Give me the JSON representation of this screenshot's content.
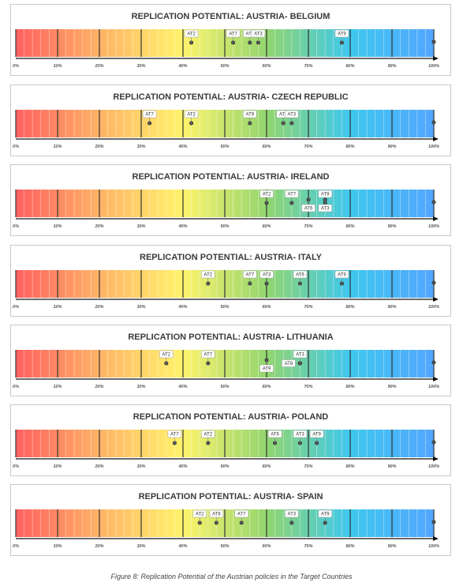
{
  "caption": "Figure 8: Replication Potential of the Austrian policies in the Target Countries",
  "scale": {
    "min": 0,
    "max": 100,
    "tick_labels": [
      "0%",
      "10%",
      "20%",
      "30%",
      "40%",
      "50%",
      "60%",
      "70%",
      "80%",
      "90%",
      "100%"
    ],
    "gradient_colors": [
      "#ff5f5f",
      "#ffb366",
      "#fff36b",
      "#92d66f",
      "#3ec8ee",
      "#53a6ff"
    ]
  },
  "chart_data": [
    {
      "type": "scatter",
      "title": "REPLICATION POTENTIAL: AUSTRIA- BELGIUM",
      "xlim": [
        0,
        100
      ],
      "points": [
        {
          "label": "AT2",
          "x": 42,
          "label_pos": "above"
        },
        {
          "label": "AT7",
          "x": 52,
          "label_pos": "above"
        },
        {
          "label": "AT6",
          "x": 56,
          "label_pos": "above"
        },
        {
          "label": "AT3",
          "x": 58,
          "label_pos": "above"
        },
        {
          "label": "AT9",
          "x": 78,
          "label_pos": "above"
        },
        {
          "label": "",
          "x": 100,
          "label_pos": "none"
        }
      ]
    },
    {
      "type": "scatter",
      "title": "REPLICATION POTENTIAL: AUSTRIA- CZECH REPUBLIC",
      "xlim": [
        0,
        100
      ],
      "points": [
        {
          "label": "AT7",
          "x": 32,
          "label_pos": "above"
        },
        {
          "label": "AT2",
          "x": 42,
          "label_pos": "above"
        },
        {
          "label": "AT9",
          "x": 56,
          "label_pos": "above"
        },
        {
          "label": "AT6",
          "x": 64,
          "label_pos": "above"
        },
        {
          "label": "AT3",
          "x": 66,
          "label_pos": "above"
        },
        {
          "label": "",
          "x": 100,
          "label_pos": "none"
        }
      ]
    },
    {
      "type": "scatter",
      "title": "REPLICATION POTENTIAL: AUSTRIA- IRELAND",
      "xlim": [
        0,
        100
      ],
      "points": [
        {
          "label": "AT2",
          "x": 60,
          "label_pos": "above"
        },
        {
          "label": "AT7",
          "x": 66,
          "label_pos": "above"
        },
        {
          "label": "AT6",
          "x": 70,
          "label_pos": "below"
        },
        {
          "label": "AT9",
          "x": 74,
          "label_pos": "above"
        },
        {
          "label": "AT3",
          "x": 74,
          "label_pos": "below"
        },
        {
          "label": "",
          "x": 100,
          "label_pos": "none"
        }
      ]
    },
    {
      "type": "scatter",
      "title": "REPLICATION POTENTIAL: AUSTRIA- ITALY",
      "xlim": [
        0,
        100
      ],
      "points": [
        {
          "label": "AT2",
          "x": 46,
          "label_pos": "above"
        },
        {
          "label": "AT7",
          "x": 56,
          "label_pos": "above"
        },
        {
          "label": "AT3",
          "x": 60,
          "label_pos": "above"
        },
        {
          "label": "AT6",
          "x": 68,
          "label_pos": "above"
        },
        {
          "label": "AT9",
          "x": 78,
          "label_pos": "above"
        },
        {
          "label": "",
          "x": 100,
          "label_pos": "none"
        }
      ]
    },
    {
      "type": "scatter",
      "title": "REPLICATION POTENTIAL: AUSTRIA- LITHUANIA",
      "xlim": [
        0,
        100
      ],
      "points": [
        {
          "label": "AT2",
          "x": 36,
          "label_pos": "above"
        },
        {
          "label": "AT7",
          "x": 46,
          "label_pos": "above"
        },
        {
          "label": "AT9",
          "x": 60,
          "label_pos": "below"
        },
        {
          "label": "AT6",
          "x": 68,
          "label_pos": "left"
        },
        {
          "label": "AT3",
          "x": 68,
          "label_pos": "above"
        },
        {
          "label": "",
          "x": 100,
          "label_pos": "none"
        }
      ]
    },
    {
      "type": "scatter",
      "title": "REPLICATION POTENTIAL: AUSTRIA- POLAND",
      "xlim": [
        0,
        100
      ],
      "points": [
        {
          "label": "AT7",
          "x": 38,
          "label_pos": "above"
        },
        {
          "label": "AT2",
          "x": 46,
          "label_pos": "above"
        },
        {
          "label": "AT6",
          "x": 62,
          "label_pos": "above"
        },
        {
          "label": "AT3",
          "x": 68,
          "label_pos": "above"
        },
        {
          "label": "AT9",
          "x": 72,
          "label_pos": "above"
        },
        {
          "label": "",
          "x": 100,
          "label_pos": "none"
        }
      ]
    },
    {
      "type": "scatter",
      "title": "REPLICATION POTENTIAL: AUSTRIA- SPAIN",
      "xlim": [
        0,
        100
      ],
      "points": [
        {
          "label": "AT2",
          "x": 44,
          "label_pos": "above"
        },
        {
          "label": "AT6",
          "x": 48,
          "label_pos": "above"
        },
        {
          "label": "AT7",
          "x": 54,
          "label_pos": "above"
        },
        {
          "label": "AT3",
          "x": 66,
          "label_pos": "above"
        },
        {
          "label": "AT9",
          "x": 74,
          "label_pos": "above"
        },
        {
          "label": "",
          "x": 100,
          "label_pos": "none"
        }
      ]
    }
  ]
}
